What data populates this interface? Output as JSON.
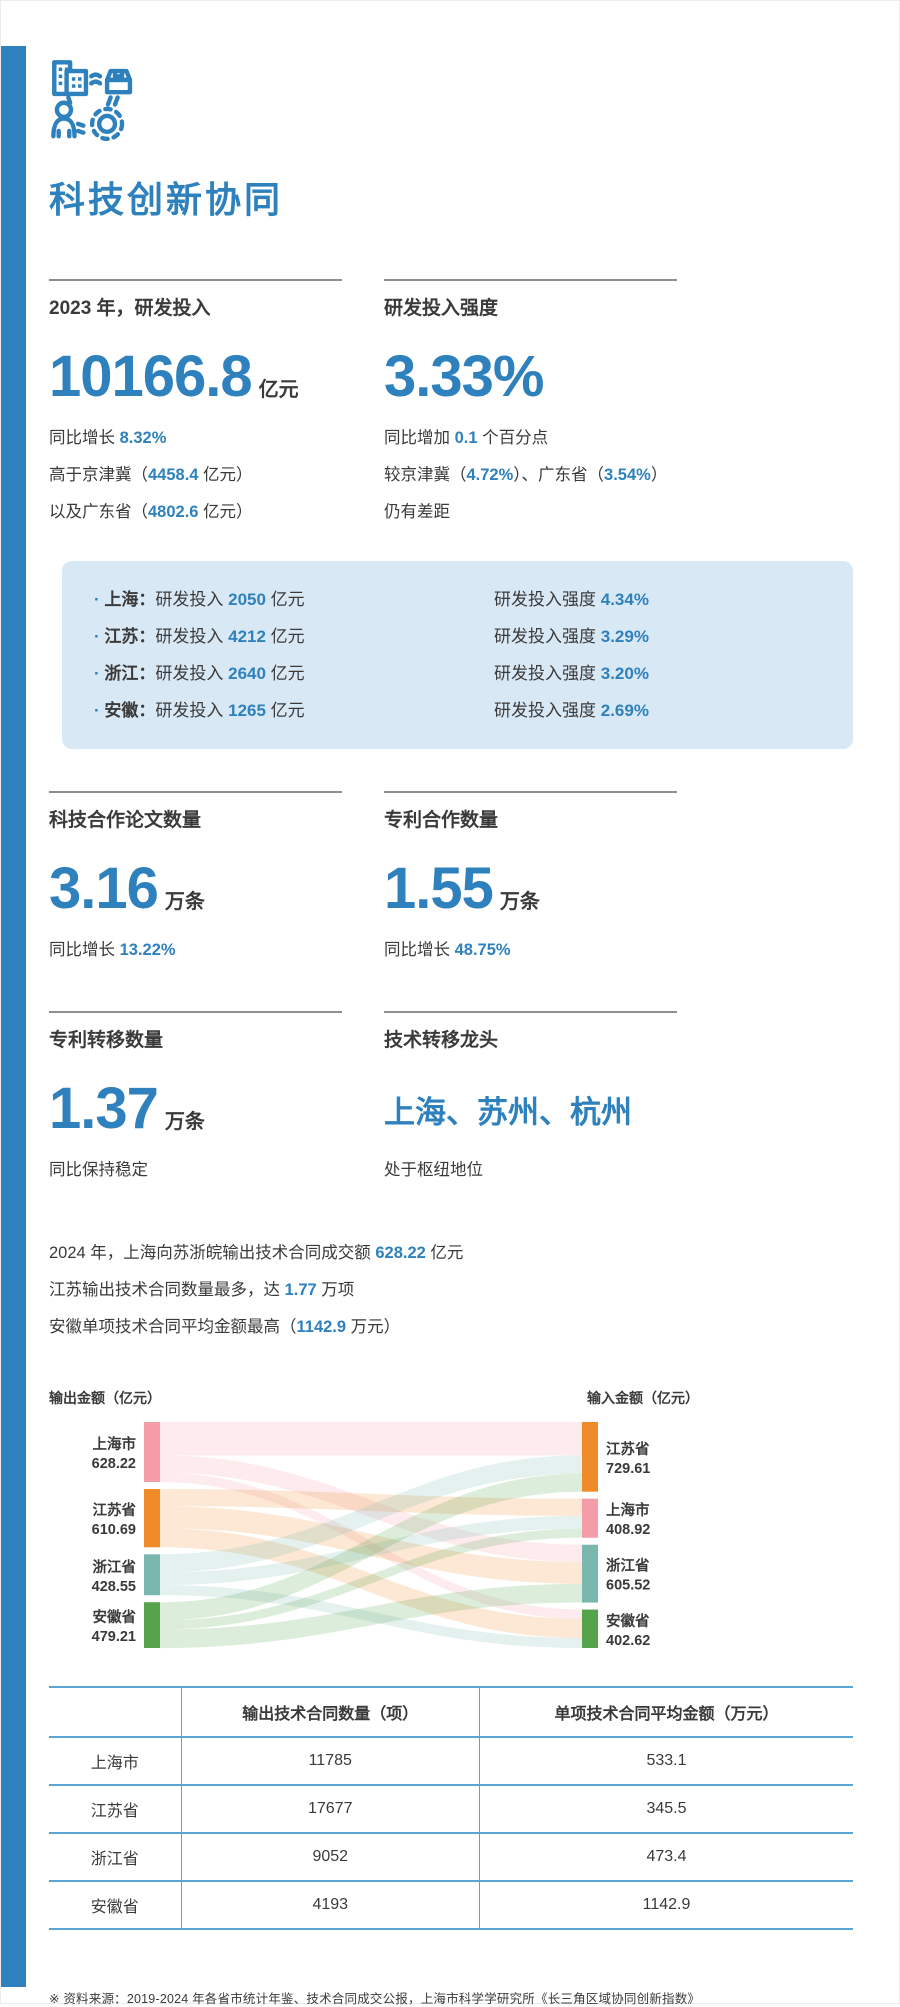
{
  "page": {
    "title": "科技创新协同",
    "accent_color": "#2E81BC",
    "footer": "※ 资料来源：2019-2024 年各省市统计年鉴、技术合同成交公报，上海市科学学研究所《长三角区域协同创新指数》"
  },
  "stat_blocks": {
    "rd_investment": {
      "label": "2023 年，研发投入",
      "number": "10166.8",
      "unit": "亿元",
      "lines": [
        [
          {
            "t": "同比增长 "
          },
          {
            "t": "8.32%",
            "b": true
          }
        ],
        [
          {
            "t": "高于京津冀（"
          },
          {
            "t": "4458.4",
            "b": true
          },
          {
            "t": " 亿元）"
          }
        ],
        [
          {
            "t": "以及广东省（"
          },
          {
            "t": "4802.6",
            "b": true
          },
          {
            "t": " 亿元）"
          }
        ]
      ]
    },
    "rd_intensity": {
      "label": "研发投入强度",
      "number": "3.33%",
      "unit": "",
      "lines": [
        [
          {
            "t": "同比增加 "
          },
          {
            "t": "0.1",
            "b": true
          },
          {
            "t": " 个百分点"
          }
        ],
        [
          {
            "t": "较京津冀（"
          },
          {
            "t": "4.72%",
            "b": true
          },
          {
            "t": "）、广东省（"
          },
          {
            "t": "3.54%",
            "b": true
          },
          {
            "t": "）"
          }
        ],
        [
          {
            "t": "仍有差距"
          }
        ]
      ]
    },
    "coop_papers": {
      "label": "科技合作论文数量",
      "number": "3.16",
      "unit": "万条",
      "lines": [
        [
          {
            "t": "同比增长 "
          },
          {
            "t": "13.22%",
            "b": true
          }
        ]
      ]
    },
    "coop_patents": {
      "label": "专利合作数量",
      "number": "1.55",
      "unit": "万条",
      "lines": [
        [
          {
            "t": "同比增长 "
          },
          {
            "t": "48.75%",
            "b": true
          }
        ]
      ]
    },
    "patent_transfer": {
      "label": "专利转移数量",
      "number": "1.37",
      "unit": "万条",
      "lines": [
        [
          {
            "t": "同比保持稳定"
          }
        ]
      ]
    },
    "tech_hub": {
      "label": "技术转移龙头",
      "cities": "上海、苏州、杭州",
      "lines": [
        [
          {
            "t": "处于枢纽地位"
          }
        ]
      ]
    }
  },
  "highlight_box": {
    "rows": [
      {
        "left": [
          {
            "t": "· ",
            "b": true
          },
          {
            "t": "上海：",
            "n": true
          },
          {
            "t": "研发投入 "
          },
          {
            "t": "2050",
            "b": true
          },
          {
            "t": " 亿元"
          }
        ],
        "right": [
          {
            "t": "研发投入强度 "
          },
          {
            "t": "4.34%",
            "b": true
          }
        ]
      },
      {
        "left": [
          {
            "t": "· ",
            "b": true
          },
          {
            "t": "江苏：",
            "n": true
          },
          {
            "t": "研发投入 "
          },
          {
            "t": "4212",
            "b": true
          },
          {
            "t": " 亿元"
          }
        ],
        "right": [
          {
            "t": "研发投入强度 "
          },
          {
            "t": "3.29%",
            "b": true
          }
        ]
      },
      {
        "left": [
          {
            "t": "· ",
            "b": true
          },
          {
            "t": "浙江：",
            "n": true
          },
          {
            "t": "研发投入 "
          },
          {
            "t": "2640",
            "b": true
          },
          {
            "t": " 亿元"
          }
        ],
        "right": [
          {
            "t": "研发投入强度 "
          },
          {
            "t": "3.20%",
            "b": true
          }
        ]
      },
      {
        "left": [
          {
            "t": "· ",
            "b": true
          },
          {
            "t": "安徽：",
            "n": true
          },
          {
            "t": "研发投入 "
          },
          {
            "t": "1265",
            "b": true
          },
          {
            "t": " 亿元"
          }
        ],
        "right": [
          {
            "t": "研发投入强度 "
          },
          {
            "t": "2.69%",
            "b": true
          }
        ]
      }
    ]
  },
  "paragraph": {
    "lines": [
      [
        {
          "t": "2024 年，上海向苏浙皖输出技术合同成交额 "
        },
        {
          "t": "628.22",
          "b": true
        },
        {
          "t": " 亿元"
        }
      ],
      [
        {
          "t": "江苏输出技术合同数量最多，达 "
        },
        {
          "t": "1.77",
          "b": true
        },
        {
          "t": " 万项"
        }
      ],
      [
        {
          "t": "安徽单项技术合同平均金额最高（"
        },
        {
          "t": "1142.9",
          "b": true
        },
        {
          "t": " 万元）"
        }
      ]
    ]
  },
  "chart_data": {
    "type": "sankey",
    "left_axis_label": "输出金额（亿元）",
    "right_axis_label": "输入金额（亿元）",
    "sources": [
      {
        "name": "上海市",
        "value": 628.22,
        "color": "#F59CA9"
      },
      {
        "name": "江苏省",
        "value": 610.69,
        "color": "#EF8B28"
      },
      {
        "name": "浙江省",
        "value": 428.55,
        "color": "#79B7AF"
      },
      {
        "name": "安徽省",
        "value": 479.21,
        "color": "#55A34A"
      }
    ],
    "targets": [
      {
        "name": "江苏省",
        "value": 729.61,
        "color": "#EF8B28"
      },
      {
        "name": "上海市",
        "value": 408.92,
        "color": "#F59CA9"
      },
      {
        "name": "浙江省",
        "value": 605.52,
        "color": "#79B7AF"
      },
      {
        "name": "安徽省",
        "value": 402.62,
        "color": "#55A34A"
      }
    ],
    "links": [
      {
        "source": 0,
        "target": 0,
        "value": 350
      },
      {
        "source": 0,
        "target": 2,
        "value": 180
      },
      {
        "source": 0,
        "target": 3,
        "value": 98
      },
      {
        "source": 1,
        "target": 1,
        "value": 180
      },
      {
        "source": 1,
        "target": 2,
        "value": 230
      },
      {
        "source": 1,
        "target": 3,
        "value": 200
      },
      {
        "source": 2,
        "target": 0,
        "value": 190
      },
      {
        "source": 2,
        "target": 1,
        "value": 133
      },
      {
        "source": 2,
        "target": 3,
        "value": 105
      },
      {
        "source": 3,
        "target": 0,
        "value": 190
      },
      {
        "source": 3,
        "target": 1,
        "value": 95
      },
      {
        "source": 3,
        "target": 2,
        "value": 195
      }
    ]
  },
  "table": {
    "headers": [
      "",
      "输出技术合同数量（项）",
      "单项技术合同平均金额（万元）"
    ],
    "rows": [
      [
        "上海市",
        "11785",
        "533.1"
      ],
      [
        "江苏省",
        "17677",
        "345.5"
      ],
      [
        "浙江省",
        "9052",
        "473.4"
      ],
      [
        "安徽省",
        "4193",
        "1142.9"
      ]
    ]
  }
}
